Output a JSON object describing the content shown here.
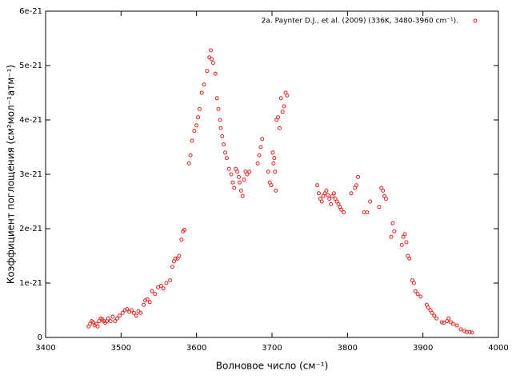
{
  "chart_data": {
    "type": "scatter",
    "xlabel": "Волновое число (см⁻¹)",
    "ylabel": "Коэффициент поглощения (см²мол⁻¹атм⁻¹)",
    "xlim": [
      3400,
      4000
    ],
    "xticks": [
      3400,
      3500,
      3600,
      3700,
      3800,
      3900,
      4000
    ],
    "ylim": [
      0,
      6e-21
    ],
    "yticks": [
      0,
      1e-21,
      2e-21,
      3e-21,
      4e-21,
      5e-21,
      6e-21
    ],
    "grid": false,
    "legend": "upper right",
    "series": [
      {
        "name": "2a. Paynter D.J., et al. (2009) (336K, 3480-3960 cm⁻¹).",
        "color": "#e0231c",
        "x": [
          3457,
          3459,
          3461,
          3463,
          3465,
          3467,
          3469,
          3471,
          3473,
          3475,
          3477,
          3479,
          3481,
          3483,
          3486,
          3489,
          3492,
          3495,
          3498,
          3502,
          3505,
          3508,
          3511,
          3514,
          3517,
          3520,
          3523,
          3526,
          3530,
          3532,
          3535,
          3538,
          3541,
          3545,
          3549,
          3553,
          3556,
          3560,
          3565,
          3568,
          3570,
          3572,
          3575,
          3577,
          3580,
          3582,
          3584,
          3590,
          3592,
          3594,
          3597,
          3600,
          3602,
          3604,
          3607,
          3610,
          3614,
          3617,
          3619,
          3620,
          3622,
          3625,
          3627,
          3629,
          3631,
          3632,
          3634,
          3636,
          3638,
          3640,
          3643,
          3646,
          3648,
          3650,
          3652,
          3654,
          3656,
          3657,
          3659,
          3661,
          3663,
          3665,
          3667,
          3670,
          3681,
          3683,
          3685,
          3687,
          3695,
          3697,
          3699,
          3701,
          3702,
          3703,
          3704,
          3705,
          3706,
          3708,
          3710,
          3712,
          3714,
          3716,
          3718,
          3720,
          3760,
          3762,
          3764,
          3766,
          3768,
          3770,
          3772,
          3774,
          3776,
          3778,
          3780,
          3782,
          3784,
          3786,
          3788,
          3790,
          3792,
          3795,
          3805,
          3810,
          3812,
          3814,
          3822,
          3826,
          3830,
          3842,
          3845,
          3847,
          3849,
          3851,
          3858,
          3860,
          3862,
          3872,
          3874,
          3876,
          3878,
          3880,
          3882,
          3886,
          3888,
          3890,
          3893,
          3897,
          3905,
          3907,
          3910,
          3912,
          3915,
          3918,
          3925,
          3928,
          3932,
          3934,
          3937,
          3940,
          3945,
          3950,
          3955,
          3958,
          3962,
          3965
        ],
        "values": [
          2e-22,
          2.5e-22,
          3e-22,
          2.8e-22,
          2.2e-22,
          2.5e-22,
          2e-22,
          3e-22,
          3.5e-22,
          3.3e-22,
          3e-22,
          2.7e-22,
          3e-22,
          3.5e-22,
          3e-22,
          3.8e-22,
          3e-22,
          3.5e-22,
          4e-22,
          4.5e-22,
          5e-22,
          5.2e-22,
          4.7e-22,
          5e-22,
          4.5e-22,
          4e-22,
          4.8e-22,
          4.5e-22,
          6e-22,
          6.8e-22,
          7e-22,
          6.5e-22,
          8.5e-22,
          8e-22,
          9.2e-22,
          9.5e-22,
          9e-22,
          1e-21,
          1.05e-21,
          1.3e-21,
          1.4e-21,
          1.45e-21,
          1.45e-21,
          1.5e-21,
          1.8e-21,
          1.95e-21,
          1.98e-21,
          3.2e-21,
          3.35e-21,
          3.62e-21,
          3.8e-21,
          3.9e-21,
          4.05e-21,
          4.2e-21,
          4.5e-21,
          4.65e-21,
          4.9e-21,
          5.15e-21,
          5.28e-21,
          5.12e-21,
          5.05e-21,
          4.85e-21,
          4.4e-21,
          4.2e-21,
          4e-21,
          3.85e-21,
          3.7e-21,
          3.55e-21,
          3.4e-21,
          3.3e-21,
          3.1e-21,
          3e-21,
          2.85e-21,
          2.75e-21,
          3.1e-21,
          3.05e-21,
          2.95e-21,
          2.85e-21,
          2.7e-21,
          2.6e-21,
          2.9e-21,
          3.05e-21,
          3e-21,
          3.05e-21,
          3.2e-21,
          3.35e-21,
          3.5e-21,
          3.65e-21,
          3.05e-21,
          2.85e-21,
          2.8e-21,
          3.4e-21,
          3.2e-21,
          3.3e-21,
          3.05e-21,
          2.7e-21,
          4e-21,
          4.05e-21,
          3.85e-21,
          4.4e-21,
          4.15e-21,
          4.25e-21,
          4.5e-21,
          4.45e-21,
          2.8e-21,
          2.65e-21,
          2.55e-21,
          2.5e-21,
          2.6e-21,
          2.65e-21,
          2.7e-21,
          2.62e-21,
          2.55e-21,
          2.45e-21,
          2.6e-21,
          2.65e-21,
          2.55e-21,
          2.5e-21,
          2.45e-21,
          2.4e-21,
          2.35e-21,
          2.3e-21,
          2.65e-21,
          2.75e-21,
          2.8e-21,
          2.95e-21,
          2.3e-21,
          2.3e-21,
          2.5e-21,
          2.4e-21,
          2.75e-21,
          2.7e-21,
          2.6e-21,
          2.55e-21,
          1.85e-21,
          2.1e-21,
          1.95e-21,
          1.7e-21,
          1.85e-21,
          1.9e-21,
          1.75e-21,
          1.5e-21,
          1.45e-21,
          1.05e-21,
          1e-21,
          8.5e-22,
          8e-22,
          7.5e-22,
          6e-22,
          5.5e-22,
          5e-22,
          4.5e-22,
          4e-22,
          3.5e-22,
          2.8e-22,
          2.7e-22,
          3e-22,
          3.5e-22,
          2.8e-22,
          2.5e-22,
          2.2e-22,
          1.5e-22,
          1.2e-22,
          1e-22,
          1e-22,
          9e-23
        ]
      }
    ]
  }
}
